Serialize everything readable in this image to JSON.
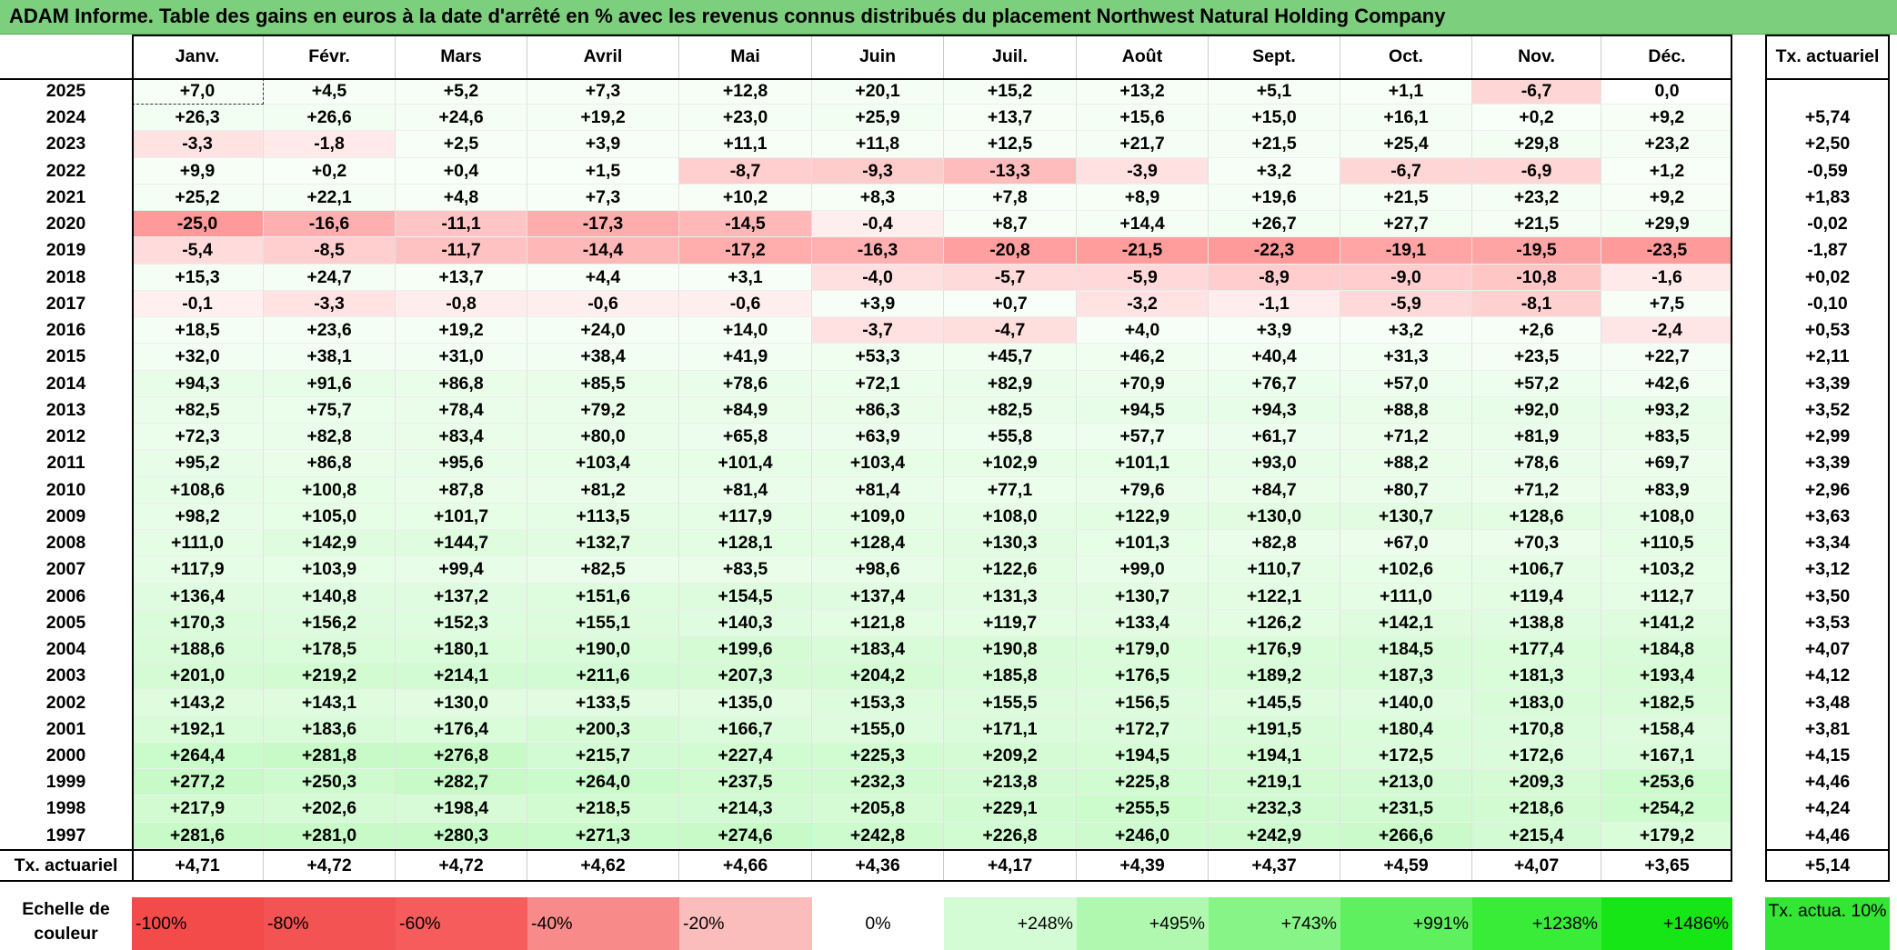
{
  "title": "ADAM Informe. Table des gains en euros à la date d'arrêté en % avec les revenus connus distribués du placement Northwest Natural Holding Company",
  "months": [
    "Janv.",
    "Févr.",
    "Mars",
    "Avril",
    "Mai",
    "Juin",
    "Juil.",
    "Août",
    "Sept.",
    "Oct.",
    "Nov.",
    "Déc."
  ],
  "rate_header": "Tx. actuariel",
  "rows": [
    {
      "year": "2025",
      "values": [
        "+7,0",
        "+4,5",
        "+5,2",
        "+7,3",
        "+12,8",
        "+20,1",
        "+15,2",
        "+13,2",
        "+5,1",
        "+1,1",
        "-6,7",
        "0,0"
      ],
      "rate": ""
    },
    {
      "year": "2024",
      "values": [
        "+26,3",
        "+26,6",
        "+24,6",
        "+19,2",
        "+23,0",
        "+25,9",
        "+13,7",
        "+15,6",
        "+15,0",
        "+16,1",
        "+0,2",
        "+9,2"
      ],
      "rate": "+5,74"
    },
    {
      "year": "2023",
      "values": [
        "-3,3",
        "-1,8",
        "+2,5",
        "+3,9",
        "+11,1",
        "+11,8",
        "+12,5",
        "+21,7",
        "+21,5",
        "+25,4",
        "+29,8",
        "+23,2"
      ],
      "rate": "+2,50"
    },
    {
      "year": "2022",
      "values": [
        "+9,9",
        "+0,2",
        "+0,4",
        "+1,5",
        "-8,7",
        "-9,3",
        "-13,3",
        "-3,9",
        "+3,2",
        "-6,7",
        "-6,9",
        "+1,2"
      ],
      "rate": "-0,59"
    },
    {
      "year": "2021",
      "values": [
        "+25,2",
        "+22,1",
        "+4,8",
        "+7,3",
        "+10,2",
        "+8,3",
        "+7,8",
        "+8,9",
        "+19,6",
        "+21,5",
        "+23,2",
        "+9,2"
      ],
      "rate": "+1,83"
    },
    {
      "year": "2020",
      "values": [
        "-25,0",
        "-16,6",
        "-11,1",
        "-17,3",
        "-14,5",
        "-0,4",
        "+8,7",
        "+14,4",
        "+26,7",
        "+27,7",
        "+21,5",
        "+29,9"
      ],
      "rate": "-0,02"
    },
    {
      "year": "2019",
      "values": [
        "-5,4",
        "-8,5",
        "-11,7",
        "-14,4",
        "-17,2",
        "-16,3",
        "-20,8",
        "-21,5",
        "-22,3",
        "-19,1",
        "-19,5",
        "-23,5"
      ],
      "rate": "-1,87"
    },
    {
      "year": "2018",
      "values": [
        "+15,3",
        "+24,7",
        "+13,7",
        "+4,4",
        "+3,1",
        "-4,0",
        "-5,7",
        "-5,9",
        "-8,9",
        "-9,0",
        "-10,8",
        "-1,6"
      ],
      "rate": "+0,02"
    },
    {
      "year": "2017",
      "values": [
        "-0,1",
        "-3,3",
        "-0,8",
        "-0,6",
        "-0,6",
        "+3,9",
        "+0,7",
        "-3,2",
        "-1,1",
        "-5,9",
        "-8,1",
        "+7,5"
      ],
      "rate": "-0,10"
    },
    {
      "year": "2016",
      "values": [
        "+18,5",
        "+23,6",
        "+19,2",
        "+24,0",
        "+14,0",
        "-3,7",
        "-4,7",
        "+4,0",
        "+3,9",
        "+3,2",
        "+2,6",
        "-2,4"
      ],
      "rate": "+0,53"
    },
    {
      "year": "2015",
      "values": [
        "+32,0",
        "+38,1",
        "+31,0",
        "+38,4",
        "+41,9",
        "+53,3",
        "+45,7",
        "+46,2",
        "+40,4",
        "+31,3",
        "+23,5",
        "+22,7"
      ],
      "rate": "+2,11"
    },
    {
      "year": "2014",
      "values": [
        "+94,3",
        "+91,6",
        "+86,8",
        "+85,5",
        "+78,6",
        "+72,1",
        "+82,9",
        "+70,9",
        "+76,7",
        "+57,0",
        "+57,2",
        "+42,6"
      ],
      "rate": "+3,39"
    },
    {
      "year": "2013",
      "values": [
        "+82,5",
        "+75,7",
        "+78,4",
        "+79,2",
        "+84,9",
        "+86,3",
        "+82,5",
        "+94,5",
        "+94,3",
        "+88,8",
        "+92,0",
        "+93,2"
      ],
      "rate": "+3,52"
    },
    {
      "year": "2012",
      "values": [
        "+72,3",
        "+82,8",
        "+83,4",
        "+80,0",
        "+65,8",
        "+63,9",
        "+55,8",
        "+57,7",
        "+61,7",
        "+71,2",
        "+81,9",
        "+83,5"
      ],
      "rate": "+2,99"
    },
    {
      "year": "2011",
      "values": [
        "+95,2",
        "+86,8",
        "+95,6",
        "+103,4",
        "+101,4",
        "+103,4",
        "+102,9",
        "+101,1",
        "+93,0",
        "+88,2",
        "+78,6",
        "+69,7"
      ],
      "rate": "+3,39"
    },
    {
      "year": "2010",
      "values": [
        "+108,6",
        "+100,8",
        "+87,8",
        "+81,2",
        "+81,4",
        "+81,4",
        "+77,1",
        "+79,6",
        "+84,7",
        "+80,7",
        "+71,2",
        "+83,9"
      ],
      "rate": "+2,96"
    },
    {
      "year": "2009",
      "values": [
        "+98,2",
        "+105,0",
        "+101,7",
        "+113,5",
        "+117,9",
        "+109,0",
        "+108,0",
        "+122,9",
        "+130,0",
        "+130,7",
        "+128,6",
        "+108,0"
      ],
      "rate": "+3,63"
    },
    {
      "year": "2008",
      "values": [
        "+111,0",
        "+142,9",
        "+144,7",
        "+132,7",
        "+128,1",
        "+128,4",
        "+130,3",
        "+101,3",
        "+82,8",
        "+67,0",
        "+70,3",
        "+110,5"
      ],
      "rate": "+3,34"
    },
    {
      "year": "2007",
      "values": [
        "+117,9",
        "+103,9",
        "+99,4",
        "+82,5",
        "+83,5",
        "+98,6",
        "+122,6",
        "+99,0",
        "+110,7",
        "+102,6",
        "+106,7",
        "+103,2"
      ],
      "rate": "+3,12"
    },
    {
      "year": "2006",
      "values": [
        "+136,4",
        "+140,8",
        "+137,2",
        "+151,6",
        "+154,5",
        "+137,4",
        "+131,3",
        "+130,7",
        "+122,1",
        "+111,0",
        "+119,4",
        "+112,7"
      ],
      "rate": "+3,50"
    },
    {
      "year": "2005",
      "values": [
        "+170,3",
        "+156,2",
        "+152,3",
        "+155,1",
        "+140,3",
        "+121,8",
        "+119,7",
        "+133,4",
        "+126,2",
        "+142,1",
        "+138,8",
        "+141,2"
      ],
      "rate": "+3,53"
    },
    {
      "year": "2004",
      "values": [
        "+188,6",
        "+178,5",
        "+180,1",
        "+190,0",
        "+199,6",
        "+183,4",
        "+190,8",
        "+179,0",
        "+176,9",
        "+184,5",
        "+177,4",
        "+184,8"
      ],
      "rate": "+4,07"
    },
    {
      "year": "2003",
      "values": [
        "+201,0",
        "+219,2",
        "+214,1",
        "+211,6",
        "+207,3",
        "+204,2",
        "+185,8",
        "+176,5",
        "+189,2",
        "+187,3",
        "+181,3",
        "+193,4"
      ],
      "rate": "+4,12"
    },
    {
      "year": "2002",
      "values": [
        "+143,2",
        "+143,1",
        "+130,0",
        "+133,5",
        "+135,0",
        "+153,3",
        "+155,5",
        "+156,5",
        "+145,5",
        "+140,0",
        "+183,0",
        "+182,5"
      ],
      "rate": "+3,48"
    },
    {
      "year": "2001",
      "values": [
        "+192,1",
        "+183,6",
        "+176,4",
        "+200,3",
        "+166,7",
        "+155,0",
        "+171,1",
        "+172,7",
        "+191,5",
        "+180,4",
        "+170,8",
        "+158,4"
      ],
      "rate": "+3,81"
    },
    {
      "year": "2000",
      "values": [
        "+264,4",
        "+281,8",
        "+276,8",
        "+215,7",
        "+227,4",
        "+225,3",
        "+209,2",
        "+194,5",
        "+194,1",
        "+172,5",
        "+172,6",
        "+167,1"
      ],
      "rate": "+4,15"
    },
    {
      "year": "1999",
      "values": [
        "+277,2",
        "+250,3",
        "+282,7",
        "+264,0",
        "+237,5",
        "+232,3",
        "+213,8",
        "+225,8",
        "+219,1",
        "+213,0",
        "+209,3",
        "+253,6"
      ],
      "rate": "+4,46"
    },
    {
      "year": "1998",
      "values": [
        "+217,9",
        "+202,6",
        "+198,4",
        "+218,5",
        "+214,3",
        "+205,8",
        "+229,1",
        "+255,5",
        "+232,3",
        "+231,5",
        "+218,6",
        "+254,2"
      ],
      "rate": "+4,24"
    },
    {
      "year": "1997",
      "values": [
        "+281,6",
        "+281,0",
        "+280,3",
        "+271,3",
        "+274,6",
        "+242,8",
        "+226,8",
        "+246,0",
        "+242,9",
        "+266,6",
        "+215,4",
        "+179,2"
      ],
      "rate": "+4,46"
    }
  ],
  "footer": {
    "label": "Tx. actuariel",
    "values": [
      "+4,71",
      "+4,72",
      "+4,72",
      "+4,62",
      "+4,66",
      "+4,36",
      "+4,17",
      "+4,39",
      "+4,37",
      "+4,59",
      "+4,07",
      "+3,65"
    ],
    "total": "+5,14"
  },
  "legend": {
    "label": "Echelle de couleur",
    "items": [
      {
        "text": "-100%",
        "color": "#f34a4a",
        "align": "left"
      },
      {
        "text": "-80%",
        "color": "#f45353",
        "align": "left"
      },
      {
        "text": "-60%",
        "color": "#f65c5c",
        "align": "left"
      },
      {
        "text": "-40%",
        "color": "#f98a8a",
        "align": "left"
      },
      {
        "text": "-20%",
        "color": "#fbbcbc",
        "align": "left"
      },
      {
        "text": "0%",
        "color": "#ffffff",
        "align": "center"
      },
      {
        "text": "+248%",
        "color": "#d4fcd4",
        "align": "right"
      },
      {
        "text": "+495%",
        "color": "#b0f8b0",
        "align": "right"
      },
      {
        "text": "+743%",
        "color": "#86f486",
        "align": "right"
      },
      {
        "text": "+991%",
        "color": "#5ef05e",
        "align": "right"
      },
      {
        "text": "+1238%",
        "color": "#38ec38",
        "align": "right"
      },
      {
        "text": "+1486%",
        "color": "#16e616",
        "align": "right"
      }
    ],
    "note": "Tx. actua. 10%",
    "note_color": "#33e633"
  },
  "colors": {
    "title_bg": "#7ccf7c",
    "negative": "#ff9a9a",
    "positive": "#c4fac4"
  }
}
